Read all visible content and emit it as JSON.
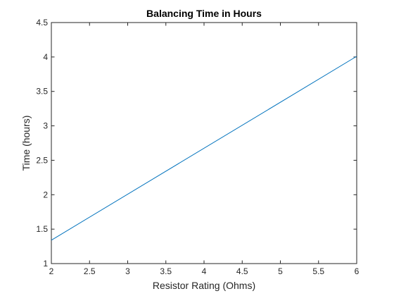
{
  "chart_data": {
    "type": "line",
    "title": "Balancing Time in Hours",
    "xlabel": "Resistor Rating (Ohms)",
    "ylabel": "Time (hours)",
    "xlim": [
      2,
      6
    ],
    "ylim": [
      1,
      4.5
    ],
    "x_ticks": [
      "2",
      "2.5",
      "3",
      "3.5",
      "4",
      "4.5",
      "5",
      "5.5",
      "6"
    ],
    "y_ticks": [
      "1",
      "1.5",
      "2",
      "2.5",
      "3",
      "3.5",
      "4",
      "4.5"
    ],
    "grid": false,
    "series": [
      {
        "color": "#0072BD",
        "x": [
          2,
          6
        ],
        "y": [
          1.34,
          4.01
        ]
      }
    ]
  }
}
